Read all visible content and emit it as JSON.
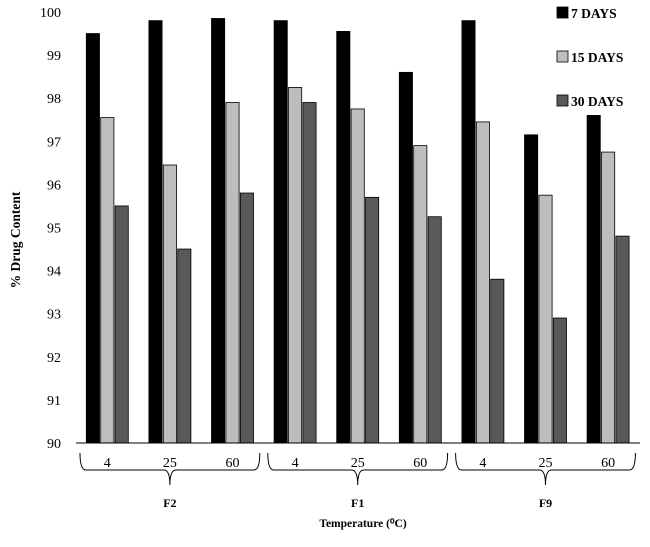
{
  "chart_data": {
    "type": "bar",
    "ylabel": "% Drug Content",
    "xlabel": "Temperature (⁰C)",
    "ylim": [
      90,
      100
    ],
    "yticks": [
      "90",
      "91",
      "92",
      "93",
      "94",
      "95",
      "96",
      "97",
      "98",
      "99",
      "100"
    ],
    "groups": [
      {
        "name": "F2",
        "categories": [
          "4",
          "25",
          "60"
        ]
      },
      {
        "name": "F1",
        "categories": [
          "4",
          "25",
          "60"
        ]
      },
      {
        "name": "F9",
        "categories": [
          "4",
          "25",
          "60"
        ]
      }
    ],
    "series": [
      {
        "name": "7 DAYS",
        "color": "#000000",
        "values": [
          99.5,
          99.8,
          99.85,
          99.8,
          99.55,
          98.6,
          99.8,
          97.15,
          97.6
        ]
      },
      {
        "name": "15 DAYS",
        "color": "#bdbdbd",
        "values": [
          97.55,
          96.45,
          97.9,
          98.25,
          97.75,
          96.9,
          97.45,
          95.75,
          96.75
        ]
      },
      {
        "name": "30 DAYS",
        "color": "#595959",
        "values": [
          95.5,
          94.5,
          95.8,
          97.9,
          95.7,
          95.25,
          93.8,
          92.9,
          94.8
        ]
      }
    ],
    "legend_position": "top-right",
    "grid": false
  }
}
